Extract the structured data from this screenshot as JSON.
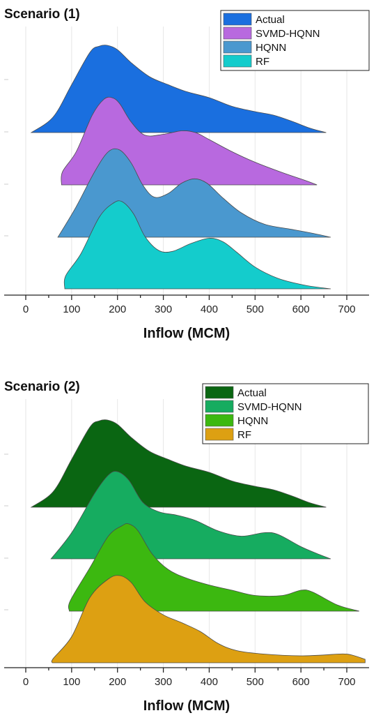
{
  "chart_data": [
    {
      "type": "ridgeline",
      "title": "Scenario (1)",
      "xlabel": "Inflow (MCM)",
      "xlim": [
        -40,
        740
      ],
      "xticks": [
        0,
        100,
        200,
        300,
        400,
        500,
        600,
        700
      ],
      "grid": true,
      "legend": "top-right",
      "series": [
        {
          "name": "Actual",
          "color": "#1a6fdf",
          "x_range": [
            12,
            655
          ],
          "shape": [
            [
              12,
              0
            ],
            [
              60,
              0.18
            ],
            [
              100,
              0.55
            ],
            [
              140,
              0.92
            ],
            [
              160,
              0.99
            ],
            [
              178,
              1.0
            ],
            [
              200,
              0.95
            ],
            [
              230,
              0.8
            ],
            [
              270,
              0.64
            ],
            [
              310,
              0.55
            ],
            [
              350,
              0.47
            ],
            [
              400,
              0.4
            ],
            [
              450,
              0.3
            ],
            [
              500,
              0.24
            ],
            [
              540,
              0.2
            ],
            [
              580,
              0.13
            ],
            [
              620,
              0.05
            ],
            [
              655,
              0
            ]
          ]
        },
        {
          "name": "SVMD-HQNN",
          "color": "#b869df",
          "x_range": [
            78,
            635
          ],
          "shape": [
            [
              78,
              0
            ],
            [
              80,
              0.15
            ],
            [
              110,
              0.38
            ],
            [
              145,
              0.8
            ],
            [
              170,
              0.98
            ],
            [
              188,
              1.0
            ],
            [
              205,
              0.93
            ],
            [
              230,
              0.72
            ],
            [
              260,
              0.57
            ],
            [
              300,
              0.58
            ],
            [
              340,
              0.62
            ],
            [
              370,
              0.6
            ],
            [
              400,
              0.52
            ],
            [
              450,
              0.38
            ],
            [
              500,
              0.26
            ],
            [
              560,
              0.14
            ],
            [
              610,
              0.05
            ],
            [
              635,
              0
            ]
          ]
        },
        {
          "name": "HQNN",
          "color": "#4a98cf",
          "x_range": [
            70,
            665
          ],
          "shape": [
            [
              70,
              0
            ],
            [
              110,
              0.35
            ],
            [
              150,
              0.75
            ],
            [
              180,
              0.98
            ],
            [
              205,
              1.0
            ],
            [
              230,
              0.85
            ],
            [
              255,
              0.6
            ],
            [
              280,
              0.46
            ],
            [
              310,
              0.5
            ],
            [
              340,
              0.62
            ],
            [
              368,
              0.67
            ],
            [
              395,
              0.62
            ],
            [
              430,
              0.45
            ],
            [
              470,
              0.28
            ],
            [
              520,
              0.15
            ],
            [
              580,
              0.09
            ],
            [
              630,
              0.04
            ],
            [
              665,
              0
            ]
          ]
        },
        {
          "name": "RF",
          "color": "#14cccc",
          "x_range": [
            85,
            665
          ],
          "shape": [
            [
              85,
              0
            ],
            [
              87,
              0.15
            ],
            [
              120,
              0.4
            ],
            [
              160,
              0.82
            ],
            [
              190,
              0.98
            ],
            [
              210,
              1.0
            ],
            [
              235,
              0.86
            ],
            [
              260,
              0.6
            ],
            [
              290,
              0.44
            ],
            [
              320,
              0.43
            ],
            [
              360,
              0.52
            ],
            [
              400,
              0.58
            ],
            [
              430,
              0.54
            ],
            [
              460,
              0.42
            ],
            [
              500,
              0.25
            ],
            [
              550,
              0.12
            ],
            [
              610,
              0.04
            ],
            [
              665,
              0
            ]
          ]
        }
      ]
    },
    {
      "type": "ridgeline",
      "title": "Scenario (2)",
      "xlabel": "Inflow (MCM)",
      "xlim": [
        -40,
        740
      ],
      "xticks": [
        0,
        100,
        200,
        300,
        400,
        500,
        600,
        700
      ],
      "grid": true,
      "legend": "top-right",
      "series": [
        {
          "name": "Actual",
          "color": "#0a6612",
          "x_range": [
            12,
            655
          ],
          "shape": [
            [
              12,
              0
            ],
            [
              60,
              0.18
            ],
            [
              100,
              0.55
            ],
            [
              140,
              0.92
            ],
            [
              160,
              0.99
            ],
            [
              178,
              1.0
            ],
            [
              200,
              0.95
            ],
            [
              230,
              0.8
            ],
            [
              270,
              0.64
            ],
            [
              310,
              0.55
            ],
            [
              350,
              0.47
            ],
            [
              400,
              0.4
            ],
            [
              450,
              0.3
            ],
            [
              500,
              0.24
            ],
            [
              540,
              0.2
            ],
            [
              580,
              0.13
            ],
            [
              620,
              0.05
            ],
            [
              655,
              0
            ]
          ]
        },
        {
          "name": "SVMD-HQNN",
          "color": "#16ac60",
          "x_range": [
            55,
            665
          ],
          "shape": [
            [
              55,
              0
            ],
            [
              100,
              0.3
            ],
            [
              150,
              0.75
            ],
            [
              180,
              0.96
            ],
            [
              200,
              1.0
            ],
            [
              225,
              0.9
            ],
            [
              255,
              0.65
            ],
            [
              290,
              0.54
            ],
            [
              330,
              0.5
            ],
            [
              370,
              0.44
            ],
            [
              420,
              0.32
            ],
            [
              470,
              0.26
            ],
            [
              520,
              0.3
            ],
            [
              550,
              0.28
            ],
            [
              600,
              0.14
            ],
            [
              640,
              0.05
            ],
            [
              665,
              0
            ]
          ]
        },
        {
          "name": "HQNN",
          "color": "#3cb810",
          "x_range": [
            95,
            727
          ],
          "shape": [
            [
              95,
              0
            ],
            [
              97,
              0.12
            ],
            [
              140,
              0.5
            ],
            [
              180,
              0.86
            ],
            [
              210,
              0.98
            ],
            [
              225,
              1.0
            ],
            [
              245,
              0.92
            ],
            [
              275,
              0.66
            ],
            [
              310,
              0.48
            ],
            [
              350,
              0.38
            ],
            [
              400,
              0.3
            ],
            [
              450,
              0.24
            ],
            [
              500,
              0.18
            ],
            [
              560,
              0.18
            ],
            [
              600,
              0.24
            ],
            [
              625,
              0.22
            ],
            [
              680,
              0.07
            ],
            [
              727,
              0
            ]
          ]
        },
        {
          "name": "RF",
          "color": "#dda012",
          "x_range": [
            58,
            740
          ],
          "shape": [
            [
              58,
              0
            ],
            [
              60,
              0.05
            ],
            [
              100,
              0.3
            ],
            [
              140,
              0.75
            ],
            [
              180,
              0.96
            ],
            [
              205,
              1.0
            ],
            [
              230,
              0.92
            ],
            [
              260,
              0.7
            ],
            [
              300,
              0.55
            ],
            [
              340,
              0.46
            ],
            [
              380,
              0.36
            ],
            [
              420,
              0.22
            ],
            [
              460,
              0.14
            ],
            [
              520,
              0.1
            ],
            [
              600,
              0.08
            ],
            [
              650,
              0.09
            ],
            [
              700,
              0.1
            ],
            [
              740,
              0.04
            ]
          ]
        }
      ]
    }
  ]
}
